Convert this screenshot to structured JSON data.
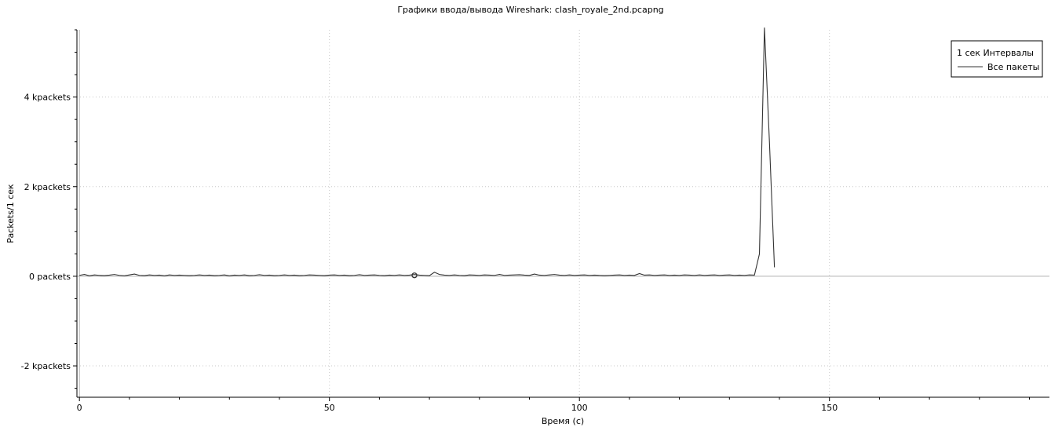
{
  "chart_data": {
    "type": "line",
    "title": "Графики ввода/вывода Wireshark: clash_royale_2nd.pcapng",
    "xlabel": "Время (с)",
    "ylabel": "Packets/1 сек",
    "xlim": [
      -0.5,
      194
    ],
    "ylim": [
      -2700,
      5500
    ],
    "x_ticks": [
      {
        "value": 0,
        "label": "0"
      },
      {
        "value": 50,
        "label": "50"
      },
      {
        "value": 100,
        "label": "100"
      },
      {
        "value": 150,
        "label": "150"
      }
    ],
    "y_ticks": [
      {
        "value": -2000,
        "label": "-2 kpackets"
      },
      {
        "value": 0,
        "label": "0 packets"
      },
      {
        "value": 2000,
        "label": "2 kpackets"
      },
      {
        "value": 4000,
        "label": "4 kpackets"
      }
    ],
    "grid": true,
    "legend": {
      "position": "top-right",
      "title": "1 сек Интервалы",
      "entries": [
        "Все пакеты"
      ]
    },
    "series": [
      {
        "name": "Все пакеты",
        "color": "#333333",
        "x": [
          0,
          1,
          2,
          3,
          4,
          5,
          6,
          7,
          8,
          9,
          10,
          11,
          12,
          13,
          14,
          15,
          16,
          17,
          18,
          19,
          20,
          21,
          22,
          23,
          24,
          25,
          26,
          27,
          28,
          29,
          30,
          31,
          32,
          33,
          34,
          35,
          36,
          37,
          38,
          39,
          40,
          41,
          42,
          43,
          44,
          45,
          46,
          47,
          48,
          49,
          50,
          51,
          52,
          53,
          54,
          55,
          56,
          57,
          58,
          59,
          60,
          61,
          62,
          63,
          64,
          65,
          66,
          67,
          68,
          69,
          70,
          71,
          72,
          73,
          74,
          75,
          76,
          77,
          78,
          79,
          80,
          81,
          82,
          83,
          84,
          85,
          86,
          87,
          88,
          89,
          90,
          91,
          92,
          93,
          94,
          95,
          96,
          97,
          98,
          99,
          100,
          101,
          102,
          103,
          104,
          105,
          106,
          107,
          108,
          109,
          110,
          111,
          112,
          113,
          114,
          115,
          116,
          117,
          118,
          119,
          120,
          121,
          122,
          123,
          124,
          125,
          126,
          127,
          128,
          129,
          130,
          131,
          132,
          133,
          134,
          135,
          136,
          137,
          138,
          139
        ],
        "values": [
          20,
          40,
          10,
          30,
          20,
          15,
          25,
          40,
          20,
          10,
          30,
          50,
          20,
          15,
          30,
          20,
          25,
          10,
          30,
          20,
          25,
          20,
          15,
          20,
          30,
          20,
          25,
          15,
          20,
          30,
          10,
          25,
          20,
          30,
          15,
          20,
          35,
          20,
          25,
          15,
          20,
          30,
          20,
          25,
          15,
          20,
          30,
          25,
          20,
          15,
          25,
          30,
          20,
          25,
          15,
          20,
          35,
          20,
          25,
          30,
          20,
          15,
          25,
          20,
          30,
          20,
          25,
          40,
          25,
          20,
          15,
          90,
          40,
          25,
          20,
          30,
          20,
          15,
          30,
          25,
          20,
          30,
          25,
          20,
          40,
          20,
          25,
          30,
          35,
          25,
          20,
          50,
          25,
          20,
          30,
          40,
          25,
          20,
          30,
          20,
          25,
          30,
          20,
          25,
          20,
          15,
          20,
          25,
          30,
          20,
          25,
          20,
          60,
          25,
          30,
          20,
          25,
          30,
          20,
          25,
          20,
          30,
          25,
          20,
          30,
          20,
          25,
          30,
          20,
          25,
          30,
          20,
          25,
          20,
          30,
          25,
          500,
          5550,
          3000,
          200
        ]
      }
    ],
    "annotations": [
      {
        "type": "marker",
        "x": 67,
        "y": 20,
        "shape": "circle"
      }
    ]
  }
}
